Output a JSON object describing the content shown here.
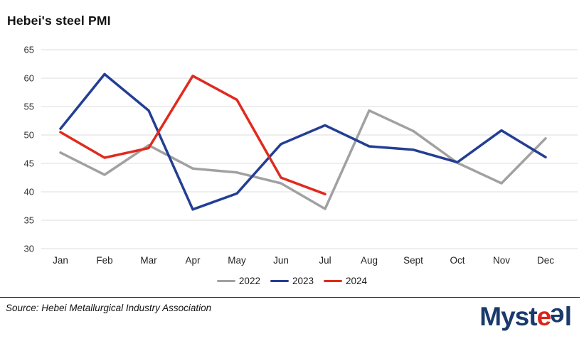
{
  "title": "Hebei's steel PMI",
  "chart_data": {
    "type": "line",
    "categories": [
      "Jan",
      "Feb",
      "Mar",
      "Apr",
      "May",
      "Jun",
      "Jul",
      "Aug",
      "Sept",
      "Oct",
      "Nov",
      "Dec"
    ],
    "series": [
      {
        "name": "2022",
        "color": "#a1a1a1",
        "values": [
          46.9,
          43.0,
          48.2,
          44.1,
          43.4,
          41.5,
          37.0,
          54.3,
          50.7,
          45.1,
          41.5,
          49.4
        ]
      },
      {
        "name": "2023",
        "color": "#233e94",
        "values": [
          51.1,
          60.7,
          54.3,
          36.9,
          39.7,
          48.4,
          51.7,
          48.0,
          47.4,
          45.2,
          50.8,
          46.1
        ]
      },
      {
        "name": "2024",
        "color": "#e02a1e",
        "values": [
          50.5,
          46.0,
          47.7,
          60.4,
          56.2,
          42.5,
          39.6
        ]
      }
    ],
    "ylim": [
      30,
      65
    ],
    "yticks": [
      65,
      60,
      55,
      50,
      45,
      40,
      35,
      30
    ],
    "grid": "horizontal",
    "gridline_color": "#dcdcdc",
    "axis_text_color": "#333333",
    "legend_position": "bottom"
  },
  "footer": {
    "source": "Source: Hebei Metallurgical Industry Association"
  },
  "logo": {
    "part1": "Myst",
    "e_red": "e",
    "e_blue": "e",
    "part2": "l",
    "navy": "#1a3a6b",
    "red": "#d8251d"
  }
}
